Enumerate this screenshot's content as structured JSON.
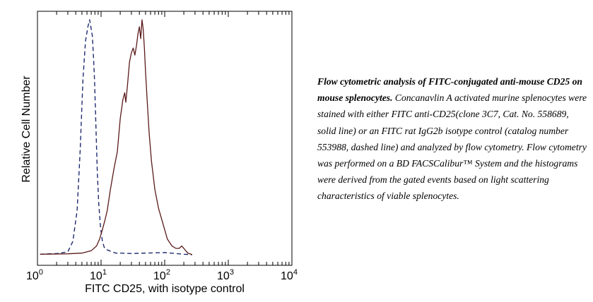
{
  "chart_data": {
    "type": "histogram",
    "xlabel": "FITC CD25, with isotype control",
    "ylabel": "Relative Cell Number",
    "x_scale": "log",
    "xlim": [
      1,
      10000
    ],
    "ylim": [
      0,
      100
    ],
    "x_ticks": [
      {
        "base": "10",
        "exp": "0",
        "value": 1
      },
      {
        "base": "10",
        "exp": "1",
        "value": 10
      },
      {
        "base": "10",
        "exp": "2",
        "value": 100
      },
      {
        "base": "10",
        "exp": "3",
        "value": 1000
      },
      {
        "base": "10",
        "exp": "4",
        "value": 10000
      }
    ],
    "series": [
      {
        "style": "dashed",
        "x": [
          1.1,
          2.0,
          3.0,
          3.6,
          4.2,
          4.7,
          5.2,
          5.7,
          6.2,
          6.6,
          7.0,
          7.3,
          7.6,
          7.9,
          8.3,
          8.7,
          9.2,
          9.8,
          10.5,
          11.2,
          12.0,
          13.5,
          15.0,
          17.0,
          20.0,
          30.0,
          50.0,
          100.0,
          150.0,
          200.0,
          270.0
        ],
        "y": [
          0.5,
          0.8,
          1.5,
          6,
          19,
          45,
          75,
          91,
          97,
          100,
          96,
          93,
          84,
          74,
          55,
          36,
          22,
          12,
          6,
          3.5,
          2.5,
          2.0,
          1.5,
          1.0,
          1.0,
          0.8,
          1.0,
          1.2,
          0.8,
          0.5,
          0.3
        ]
      },
      {
        "style": "solid",
        "x": [
          1.1,
          3.0,
          5.0,
          7.0,
          8.5,
          9.5,
          10.5,
          11.5,
          12.5,
          14.0,
          16.0,
          18.0,
          20.0,
          22.0,
          23.5,
          24.5,
          26.0,
          28.0,
          30.0,
          32.0,
          34.0,
          36.0,
          38.0,
          40.0,
          42.0,
          44.0,
          46.0,
          48.0,
          50.0,
          53.0,
          57.0,
          62.0,
          70.0,
          80.0,
          95.0,
          110.0,
          130.0,
          150.0,
          170.0,
          185.0,
          200.0,
          230.0,
          270.0
        ],
        "y": [
          0.5,
          0.7,
          1.0,
          2.0,
          4.0,
          7.0,
          11.0,
          15.0,
          19.0,
          28.0,
          37.0,
          44.0,
          58.0,
          66.0,
          69.0,
          65.0,
          72.0,
          82.0,
          86.0,
          88.0,
          85.0,
          89.0,
          94.0,
          97.0,
          92.0,
          100.0,
          96.0,
          88.0,
          78.0,
          66.0,
          52.0,
          40.0,
          28.0,
          20.0,
          13.0,
          7.0,
          4.0,
          3.0,
          3.0,
          4.0,
          3.0,
          1.0,
          0.4
        ]
      }
    ]
  },
  "caption": {
    "title": "Flow cytometric analysis of FITC-conjugated anti-mouse CD25 on mouse splenocytes.",
    "body": "Concanavlin A activated murine splenocytes were stained with either FITC anti-CD25(clone 3C7, Cat. No. 558689, solid line) or an FITC rat IgG2b isotype control (catalog number 553988, dashed line) and analyzed by flow cytometry.  Flow cytometry was performed on a BD FACSCalibur™ System and the histograms were derived from the gated events based on light scattering characteristics of viable splenocytes."
  },
  "colors": {
    "solid_line": "#5a1a1a",
    "dashed_line": "#1e2a6e",
    "axis": "#000000"
  }
}
